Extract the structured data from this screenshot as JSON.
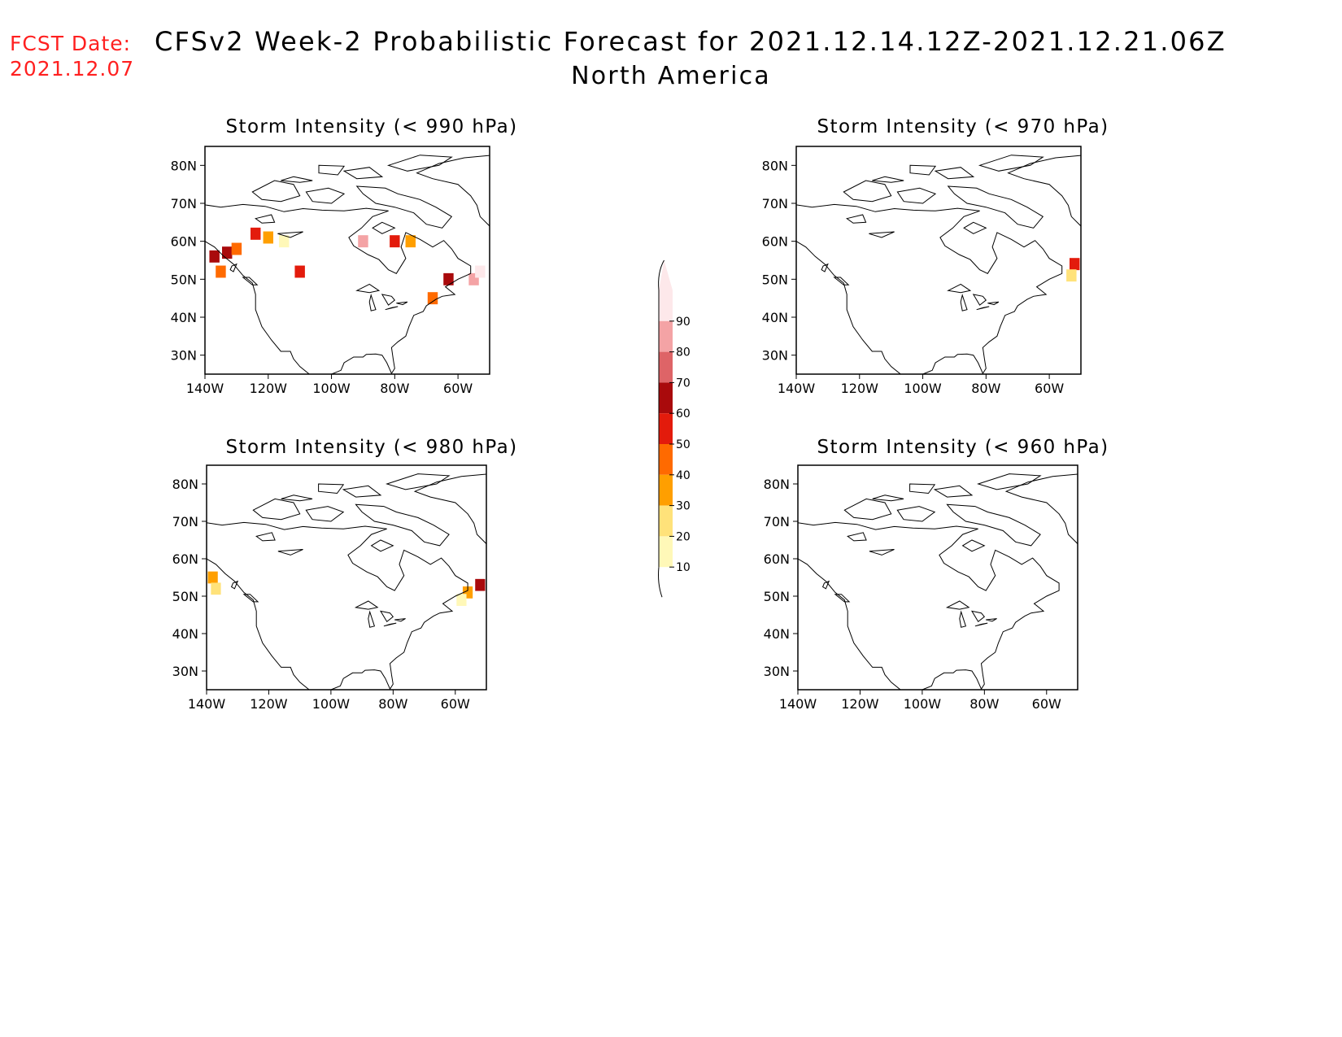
{
  "header": {
    "fcst_label": "FCST Date:",
    "fcst_date": "2021.12.07",
    "title": "CFSv2 Week-2 Probabilistic Forecast for 2021.12.14.12Z-2021.12.21.06Z",
    "subtitle": "North America"
  },
  "axes": {
    "lat_labels": [
      "80N",
      "70N",
      "60N",
      "50N",
      "40N",
      "30N"
    ],
    "lon_labels": [
      "140W",
      "120W",
      "100W",
      "80W",
      "60W"
    ]
  },
  "panels": [
    {
      "id": "p990",
      "title": "Storm Intensity (< 990 hPa)"
    },
    {
      "id": "p970",
      "title": "Storm Intensity (< 970 hPa)"
    },
    {
      "id": "p980",
      "title": "Storm Intensity (< 980 hPa)"
    },
    {
      "id": "p960",
      "title": "Storm Intensity (< 960 hPa)"
    }
  ],
  "colorbar": {
    "labels": [
      "90",
      "80",
      "70",
      "60",
      "50",
      "40",
      "30",
      "20",
      "10"
    ],
    "colors": [
      "#fde8ea",
      "#f4a3a5",
      "#de6467",
      "#a90a0c",
      "#e31b0c",
      "#ff6a00",
      "#ff9f00",
      "#ffe27a",
      "#fff8b8"
    ]
  },
  "chart_data": [
    {
      "type": "heatmap",
      "panel": "p990",
      "threshold_hPa": 990,
      "xlim": [
        -140,
        -50
      ],
      "ylim": [
        25,
        85
      ],
      "cells": [
        {
          "lon": -137,
          "lat": 56,
          "prob": 65
        },
        {
          "lon": -133,
          "lat": 57,
          "prob": 60
        },
        {
          "lon": -135,
          "lat": 52,
          "prob": 45
        },
        {
          "lon": -130,
          "lat": 58,
          "prob": 40
        },
        {
          "lon": -124,
          "lat": 62,
          "prob": 50
        },
        {
          "lon": -120,
          "lat": 61,
          "prob": 30
        },
        {
          "lon": -115,
          "lat": 60,
          "prob": 15
        },
        {
          "lon": -110,
          "lat": 52,
          "prob": 55
        },
        {
          "lon": -90,
          "lat": 60,
          "prob": 85
        },
        {
          "lon": -80,
          "lat": 60,
          "prob": 50
        },
        {
          "lon": -75,
          "lat": 60,
          "prob": 30
        },
        {
          "lon": -68,
          "lat": 45,
          "prob": 40
        },
        {
          "lon": -63,
          "lat": 50,
          "prob": 60
        },
        {
          "lon": -55,
          "lat": 50,
          "prob": 80
        },
        {
          "lon": -53,
          "lat": 52,
          "prob": 90
        }
      ]
    },
    {
      "type": "heatmap",
      "panel": "p970",
      "threshold_hPa": 970,
      "xlim": [
        -140,
        -50
      ],
      "ylim": [
        25,
        85
      ],
      "cells": [
        {
          "lon": -52,
          "lat": 54,
          "prob": 50
        },
        {
          "lon": -53,
          "lat": 51,
          "prob": 20
        }
      ]
    },
    {
      "type": "heatmap",
      "panel": "p980",
      "threshold_hPa": 980,
      "xlim": [
        -140,
        -50
      ],
      "ylim": [
        25,
        85
      ],
      "cells": [
        {
          "lon": -138,
          "lat": 55,
          "prob": 30
        },
        {
          "lon": -137,
          "lat": 52,
          "prob": 20
        },
        {
          "lon": -52,
          "lat": 53,
          "prob": 60
        },
        {
          "lon": -56,
          "lat": 51,
          "prob": 30
        },
        {
          "lon": -58,
          "lat": 49,
          "prob": 15
        }
      ]
    },
    {
      "type": "heatmap",
      "panel": "p960",
      "threshold_hPa": 960,
      "xlim": [
        -140,
        -50
      ],
      "ylim": [
        25,
        85
      ],
      "cells": []
    }
  ]
}
